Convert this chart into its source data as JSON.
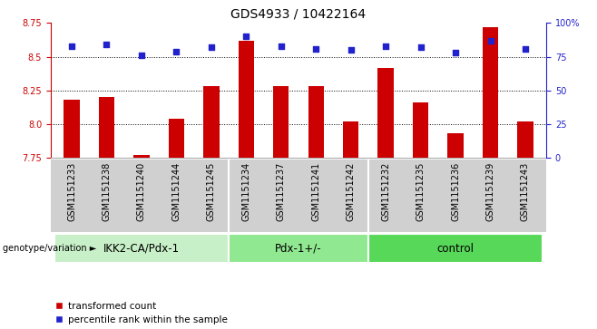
{
  "title": "GDS4933 / 10422164",
  "samples": [
    "GSM1151233",
    "GSM1151238",
    "GSM1151240",
    "GSM1151244",
    "GSM1151245",
    "GSM1151234",
    "GSM1151237",
    "GSM1151241",
    "GSM1151242",
    "GSM1151232",
    "GSM1151235",
    "GSM1151236",
    "GSM1151239",
    "GSM1151243"
  ],
  "transformed_count": [
    8.18,
    8.2,
    7.77,
    8.04,
    8.28,
    8.62,
    8.28,
    8.28,
    8.02,
    8.42,
    8.16,
    7.93,
    8.72,
    8.02
  ],
  "percentile_rank": [
    83,
    84,
    76,
    79,
    82,
    90,
    83,
    81,
    80,
    83,
    82,
    78,
    87,
    81
  ],
  "groups": [
    {
      "label": "IKK2-CA/Pdx-1",
      "start": 0,
      "end": 4,
      "color": "#c8f0c8"
    },
    {
      "label": "Pdx-1+/-",
      "start": 5,
      "end": 8,
      "color": "#90e890"
    },
    {
      "label": "control",
      "start": 9,
      "end": 13,
      "color": "#58d858"
    }
  ],
  "bar_color": "#cc0000",
  "dot_color": "#2222cc",
  "ylim_left": [
    7.75,
    8.75
  ],
  "ylim_right": [
    0,
    100
  ],
  "yticks_left": [
    7.75,
    8.0,
    8.25,
    8.5,
    8.75
  ],
  "yticks_right": [
    0,
    25,
    50,
    75,
    100
  ],
  "ytick_labels_right": [
    "0",
    "25",
    "50",
    "75",
    "100%"
  ],
  "grid_values": [
    8.0,
    8.25,
    8.5
  ],
  "bar_width": 0.45,
  "bg_color": "#ffffff",
  "sample_box_color": "#d0d0d0",
  "tick_label_fontsize": 7.0,
  "title_fontsize": 10,
  "group_label_fontsize": 8.5,
  "legend_fontsize": 7.5,
  "xlabel_text": "genotype/variation",
  "left_axis_color": "#cc0000",
  "right_axis_color": "#2222cc",
  "group_divider_color": "#ffffff"
}
